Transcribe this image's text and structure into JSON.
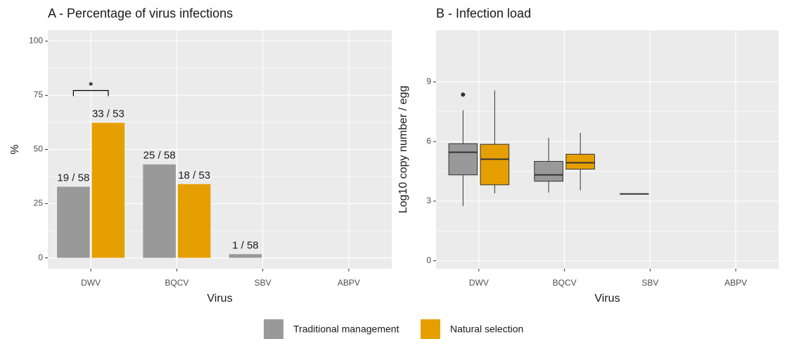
{
  "chart_data": [
    {
      "type": "bar",
      "title": "A - Percentage of virus infections",
      "x_label": "Virus",
      "y_label": "%",
      "categories": [
        "DWV",
        "BQCV",
        "SBV",
        "ABPV"
      ],
      "ylim": [
        -5,
        105
      ],
      "yticks": [
        0,
        25,
        50,
        75,
        100
      ],
      "grid": true,
      "annotation": "*",
      "legend": "bottom",
      "series": [
        {
          "name": "Traditional management",
          "color": "#999999",
          "values": [
            32.8,
            43.1,
            1.7,
            null
          ],
          "value_labels": [
            "19 / 58",
            "25 / 58",
            "1 / 58",
            null
          ]
        },
        {
          "name": "Natural selection",
          "color": "#E69F00",
          "values": [
            62.3,
            34.0,
            null,
            null
          ],
          "value_labels": [
            "33 / 53",
            "18 / 53",
            null,
            null
          ]
        }
      ]
    },
    {
      "type": "box",
      "title": "B - Infection load",
      "x_label": "Virus",
      "y_label": "Log10 copy number / egg",
      "categories": [
        "DWV",
        "BQCV",
        "SBV",
        "ABPV"
      ],
      "ylim": [
        -0.4,
        11.6
      ],
      "yticks": [
        0,
        3,
        6,
        9
      ],
      "grid": true,
      "series": [
        {
          "color": "#999999",
          "boxes": [
            {
              "min": 2.75,
              "q1": 4.32,
              "median": 5.46,
              "q3": 5.89,
              "max": 7.57,
              "outliers": [
                8.36
              ]
            },
            {
              "min": 3.43,
              "q1": 4.0,
              "median": 4.32,
              "q3": 5.0,
              "max": 6.18,
              "outliers": []
            },
            {
              "min": 3.36,
              "q1": 3.36,
              "median": 3.36,
              "q3": 3.36,
              "max": 3.36,
              "outliers": []
            },
            null
          ]
        },
        {
          "color": "#E69F00",
          "boxes": [
            {
              "min": 3.39,
              "q1": 3.82,
              "median": 5.11,
              "q3": 5.86,
              "max": 8.57,
              "outliers": []
            },
            {
              "min": 3.54,
              "q1": 4.61,
              "median": 4.93,
              "q3": 5.36,
              "max": 6.43,
              "outliers": []
            },
            null,
            null
          ]
        }
      ]
    }
  ]
}
